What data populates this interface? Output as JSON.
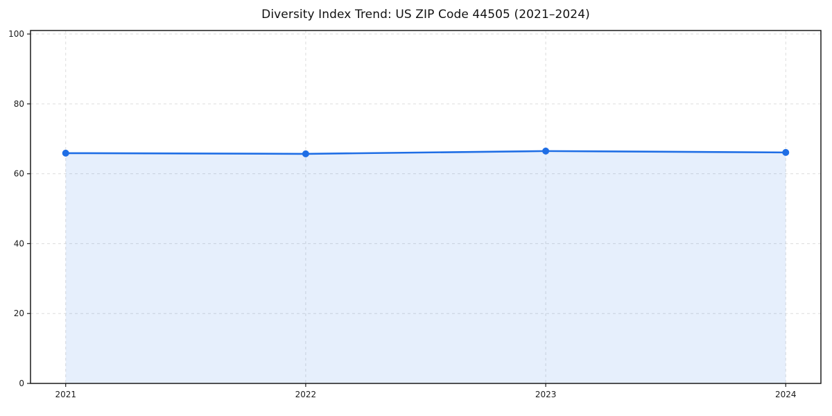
{
  "chart_data": {
    "type": "area",
    "title": "Diversity Index Trend: US ZIP Code 44505 (2021–2024)",
    "categories": [
      "2021",
      "2022",
      "2023",
      "2024"
    ],
    "series": [
      {
        "name": "Diversity Index",
        "values": [
          65.9,
          65.7,
          66.5,
          66.1
        ]
      }
    ],
    "xlabel": "",
    "ylabel": "",
    "yticks": [
      0,
      20,
      40,
      60,
      80,
      100
    ],
    "ylim": [
      0,
      101
    ],
    "grid": true,
    "grid_style": "dashed",
    "legend": "none",
    "colors": {
      "line": "#1f6ee5",
      "marker": "#1f6ee5",
      "fill": "#1f6ee5",
      "fill_opacity": 0.11,
      "fill_rendered": "#e8f0fc",
      "grid": "#dcdcdc",
      "spine": "#1a1a1a",
      "tick_text": "#1a1a1a",
      "background": "#ffffff"
    }
  }
}
